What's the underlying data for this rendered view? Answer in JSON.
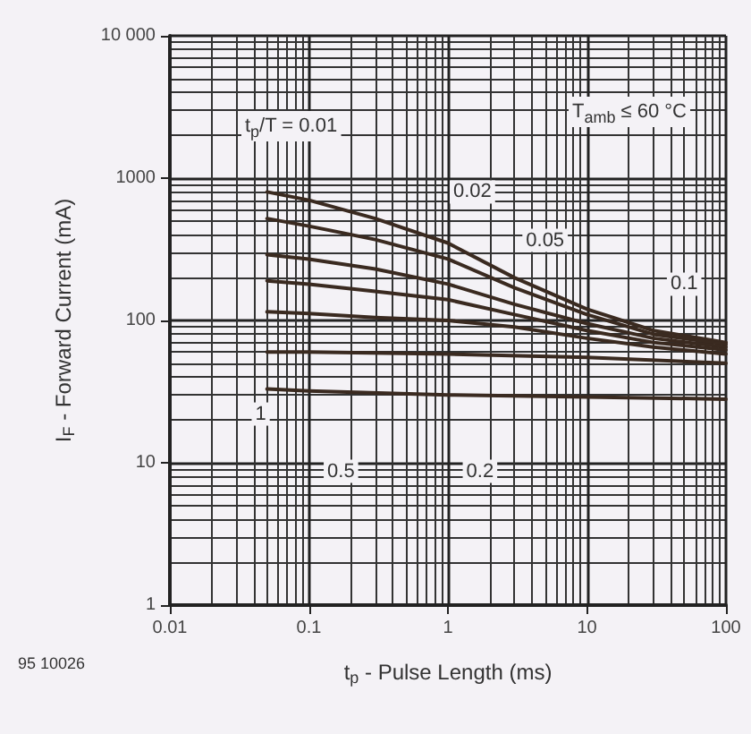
{
  "chart_data": {
    "type": "line",
    "xlabel": "t$_{p}$ - Pulse Length (ms)",
    "ylabel": "I$_{F}$ - Forward Current (mA)",
    "log": "xy",
    "xlim": [
      0.01,
      100
    ],
    "ylim": [
      1,
      10000
    ],
    "xticks": [
      0.01,
      0.1,
      1,
      10,
      100
    ],
    "yticks": [
      1,
      10,
      100,
      1000,
      {
        "value": 10000,
        "label": "10 000"
      }
    ],
    "grid": true,
    "marker": "none",
    "line_style": "solid",
    "series": [
      {
        "color": "#3a2a20",
        "x": [
          0.05,
          0.1,
          0.3,
          1,
          3,
          10,
          30,
          100
        ],
        "values": [
          800,
          700,
          520,
          350,
          200,
          120,
          85,
          70
        ]
      },
      {
        "color": "#3a2a20",
        "x": [
          0.05,
          0.1,
          0.3,
          1,
          3,
          10,
          30,
          100
        ],
        "values": [
          520,
          460,
          370,
          270,
          170,
          110,
          80,
          68
        ]
      },
      {
        "color": "#3a2a20",
        "x": [
          0.05,
          0.1,
          0.3,
          1,
          3,
          10,
          30,
          100
        ],
        "values": [
          290,
          270,
          230,
          180,
          130,
          95,
          75,
          65
        ]
      },
      {
        "color": "#3a2a20",
        "x": [
          0.05,
          0.1,
          0.3,
          1,
          3,
          10,
          30,
          100
        ],
        "values": [
          190,
          180,
          160,
          140,
          110,
          85,
          70,
          62
        ]
      },
      {
        "color": "#3a2a20",
        "x": [
          0.05,
          0.1,
          0.3,
          1,
          3,
          10,
          30,
          100
        ],
        "values": [
          115,
          112,
          105,
          100,
          90,
          75,
          65,
          58
        ]
      },
      {
        "color": "#3a2a20",
        "x": [
          0.05,
          0.1,
          1,
          10,
          100
        ],
        "values": [
          60,
          60,
          58,
          55,
          50
        ]
      },
      {
        "color": "#3a2a20",
        "x": [
          0.05,
          0.1,
          1,
          10,
          100
        ],
        "values": [
          33,
          32,
          30,
          29,
          28
        ]
      }
    ],
    "annotations": [
      "t$_{p}$/T = 0.01",
      {
        "text": "0.02",
        "x": 1.5,
        "y": 800
      },
      {
        "text": "0.05",
        "x": 5,
        "y": 365
      },
      {
        "text": "0.1",
        "x": 50,
        "y": 180
      },
      {
        "text": "0.5",
        "x": 0.17,
        "y": 8.7
      },
      {
        "text": "0.2",
        "x": 1.7,
        "y": 8.7
      },
      {
        "text": "1",
        "x": 0.045,
        "y": 22
      },
      "T$_{amb}$ ≤ 60 °C",
      "95 10026"
    ]
  }
}
